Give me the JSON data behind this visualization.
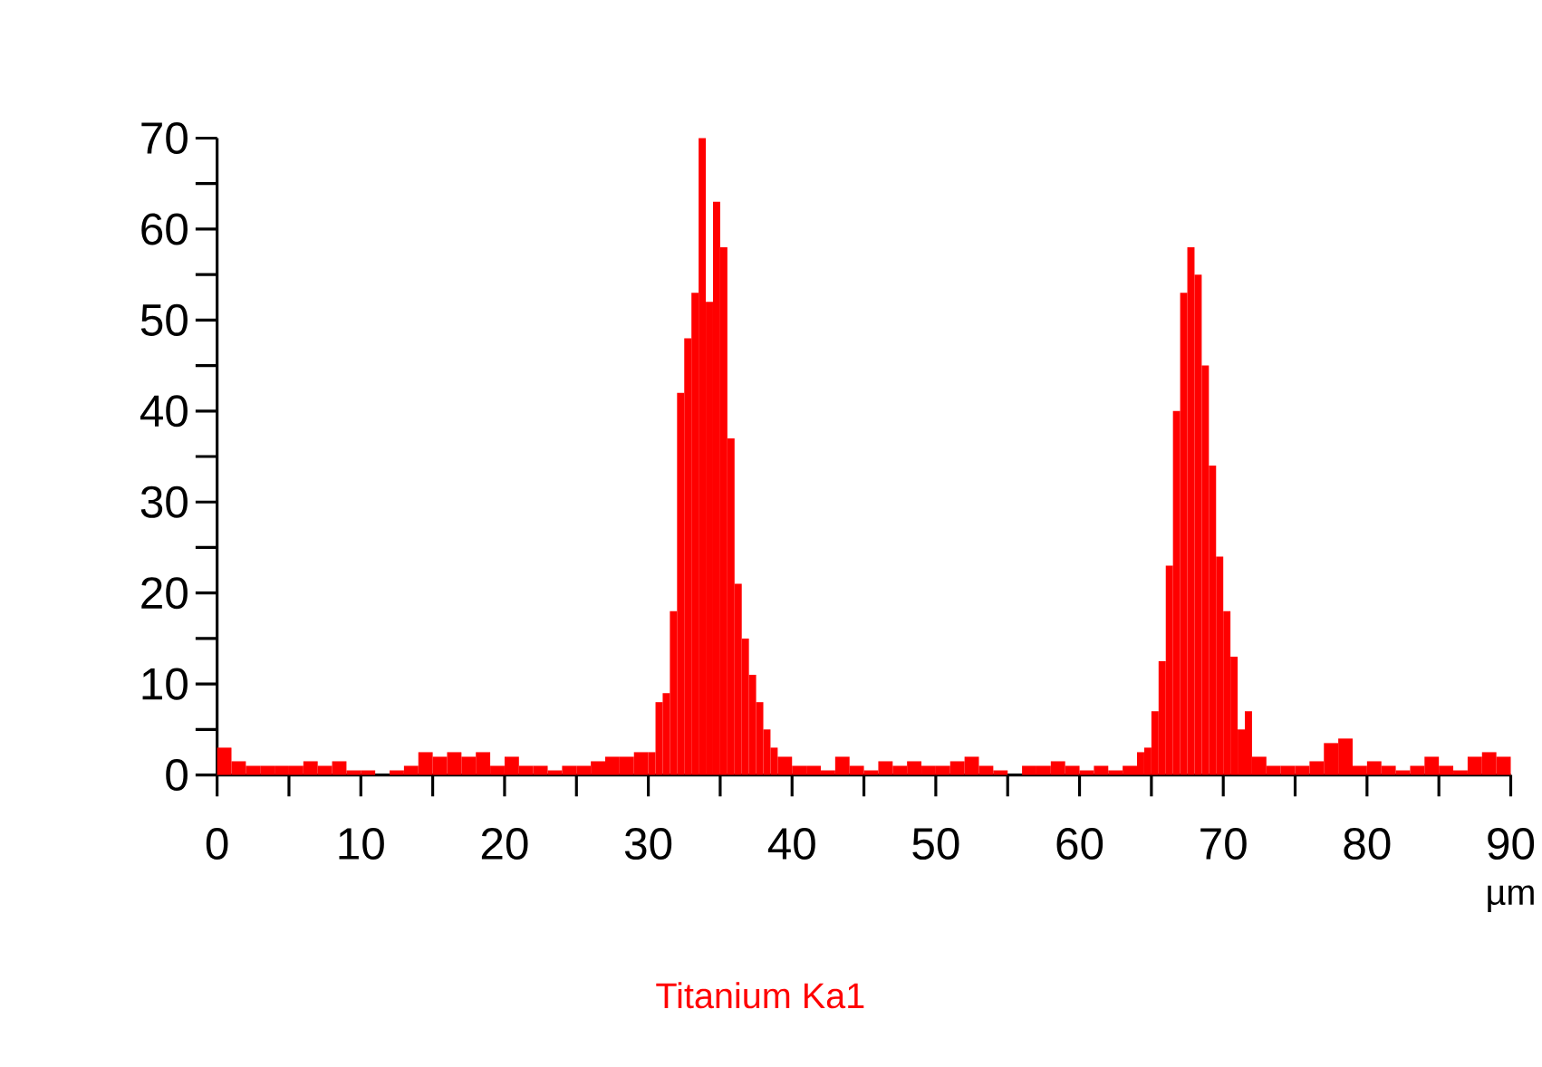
{
  "chart_data": {
    "type": "histogram",
    "xlabel": "µm",
    "bins": [
      0,
      1,
      2,
      3,
      4,
      5,
      6,
      7,
      8,
      9,
      10,
      11,
      12,
      13,
      14,
      15,
      16,
      17,
      18,
      19,
      20,
      21,
      22,
      23,
      24,
      25,
      26,
      27,
      28,
      29,
      30,
      30.5,
      31,
      31.5,
      32,
      32.5,
      33,
      33.5,
      34,
      34.5,
      35,
      35.5,
      36,
      36.5,
      37,
      37.5,
      38,
      38.5,
      39,
      40,
      41,
      42,
      43,
      44,
      45,
      46,
      47,
      48,
      49,
      50,
      51,
      52,
      53,
      54,
      55,
      56,
      57,
      58,
      59,
      60,
      61,
      62,
      63,
      64,
      64.5,
      65,
      65.5,
      66,
      66.5,
      67,
      67.5,
      68,
      68.5,
      69,
      69.5,
      70,
      70.5,
      71,
      71.5,
      72,
      73,
      74,
      75,
      76,
      77,
      78,
      79,
      80,
      81,
      82,
      83,
      84,
      85,
      86,
      87,
      88,
      89,
      90
    ],
    "series": [
      {
        "name": "Titanium Ka1",
        "color": "#ff0000",
        "values": [
          3,
          1.5,
          1,
          1,
          1,
          1,
          1.5,
          1,
          1.5,
          0.5,
          0.5,
          0,
          0.5,
          1,
          2.5,
          2,
          2.5,
          2,
          2.5,
          1,
          2,
          1,
          1,
          0.5,
          1,
          1,
          1.5,
          2,
          2,
          2.5,
          2.5,
          8,
          9,
          18,
          42,
          48,
          53,
          70,
          52,
          63,
          58,
          37,
          21,
          15,
          11,
          8,
          5,
          3,
          2,
          1,
          1,
          0.5,
          2,
          1,
          0.5,
          1.5,
          1,
          1.5,
          1,
          1,
          1.5,
          2,
          1,
          0.5,
          0,
          1,
          1,
          1.5,
          1,
          0.5,
          1,
          0.5,
          1,
          2.5,
          3,
          7,
          12.5,
          23,
          40,
          53,
          58,
          55,
          45,
          34,
          24,
          18,
          13,
          5,
          7,
          2,
          1,
          1,
          1,
          1.5,
          3.5,
          4,
          1,
          1.5,
          1,
          0.5,
          1,
          2,
          1,
          0.5,
          2,
          2.5,
          2
        ]
      }
    ],
    "xlim": [
      0,
      90
    ],
    "ylim": [
      0,
      70
    ],
    "xticks": [
      0,
      {
        "value": 5,
        "label": null
      },
      10,
      {
        "value": 15,
        "label": null
      },
      20,
      {
        "value": 25,
        "label": null
      },
      30,
      {
        "value": 35,
        "label": null
      },
      40,
      {
        "value": 45,
        "label": null
      },
      50,
      {
        "value": 55,
        "label": null
      },
      60,
      {
        "value": 65,
        "label": null
      },
      70,
      {
        "value": 75,
        "label": null
      },
      80,
      {
        "value": 85,
        "label": null
      },
      90
    ],
    "yticks": [
      0,
      {
        "value": 5,
        "label": null
      },
      10,
      {
        "value": 15,
        "label": null
      },
      20,
      {
        "value": 25,
        "label": null
      },
      30,
      {
        "value": 35,
        "label": null
      },
      40,
      {
        "value": 45,
        "label": null
      },
      50,
      {
        "value": 55,
        "label": null
      },
      60,
      {
        "value": 65,
        "label": null
      },
      70
    ]
  }
}
